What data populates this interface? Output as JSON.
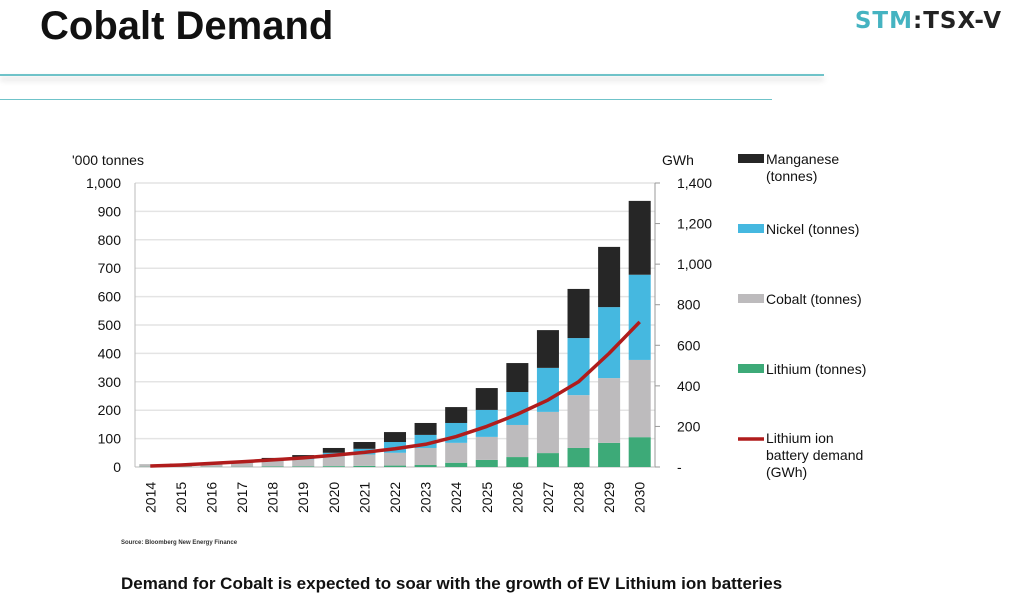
{
  "header": {
    "title": "Cobalt Demand",
    "logo_part1": "STM",
    "logo_part2": ":TSX-V"
  },
  "footer": {
    "source": "Source: Bloomberg New Energy Finance",
    "caption": "Demand for Cobalt is expected to soar with the growth of EV Lithium ion batteries"
  },
  "chart_data": {
    "type": "bar",
    "stacked": true,
    "ylabel": "'000 tonnes",
    "y2label": "GWh",
    "ylim": [
      0,
      1000
    ],
    "y2lim": [
      0,
      1400
    ],
    "yticks": [
      "0",
      "100",
      "200",
      "300",
      "400",
      "500",
      "600",
      "700",
      "800",
      "900",
      "1,000"
    ],
    "y2ticks": [
      "-",
      "200",
      "400",
      "600",
      "800",
      "1,000",
      "1,200",
      "1,400"
    ],
    "grid": true,
    "legend": "right",
    "categories": [
      "2014",
      "2015",
      "2016",
      "2017",
      "2018",
      "2019",
      "2020",
      "2021",
      "2022",
      "2023",
      "2024",
      "2025",
      "2026",
      "2027",
      "2028",
      "2029",
      "2030"
    ],
    "series": [
      {
        "name": "Lithium (tonnes)",
        "color": "#3daa78",
        "values": [
          1,
          1,
          1,
          1,
          2,
          2,
          3,
          4,
          5,
          7,
          15,
          25,
          35,
          49,
          67,
          85,
          105
        ]
      },
      {
        "name": "Cobalt (tonnes)",
        "color": "#bdbbbd",
        "values": [
          6,
          9,
          11,
          14,
          20,
          25,
          35,
          40,
          45,
          60,
          70,
          81,
          113,
          145,
          186,
          228,
          272
        ]
      },
      {
        "name": "Nickel (tonnes)",
        "color": "#45b8e0",
        "values": [
          0,
          1,
          1,
          2,
          3,
          5,
          12,
          20,
          38,
          46,
          70,
          95,
          116,
          155,
          201,
          250,
          300
        ]
      },
      {
        "name": "Manganese (tonnes)",
        "color": "#262626",
        "values": [
          1,
          1,
          2,
          3,
          7,
          10,
          17,
          24,
          35,
          42,
          56,
          77,
          102,
          133,
          173,
          212,
          260
        ]
      }
    ],
    "line": {
      "name": "Lithium ion battery demand (GWh)",
      "axis": "right",
      "color": "#b01c1c",
      "values": [
        5,
        10,
        18,
        26,
        35,
        45,
        58,
        72,
        90,
        112,
        150,
        200,
        260,
        330,
        420,
        560,
        715
      ]
    }
  }
}
